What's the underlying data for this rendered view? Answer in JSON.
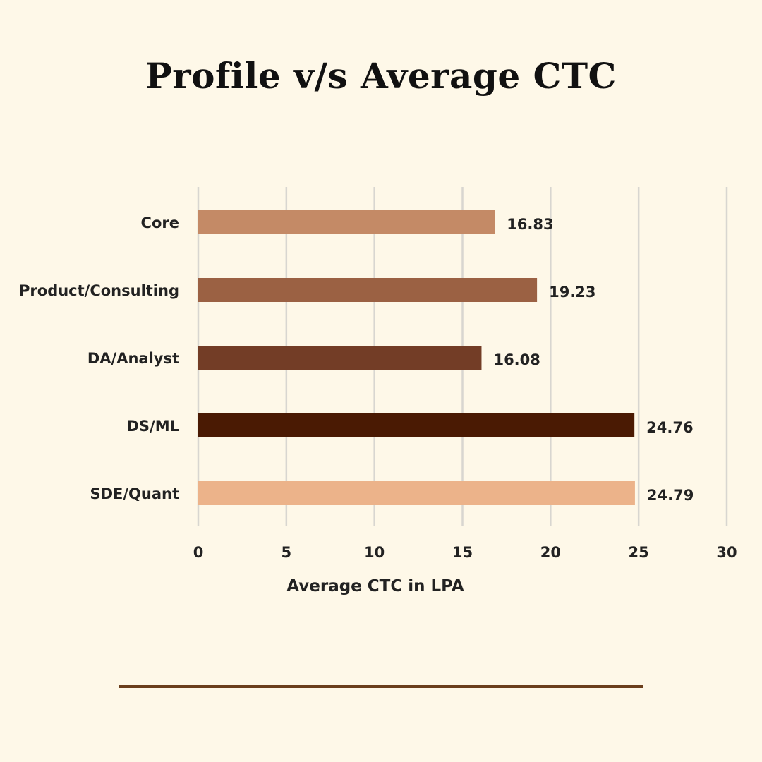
{
  "title": "Profile v/s Average CTC",
  "chart_data": {
    "type": "bar",
    "orientation": "horizontal",
    "title": "Profile v/s Average CTC",
    "xlabel": "Average CTC in LPA",
    "ylabel": "",
    "xlim": [
      0,
      30
    ],
    "x_ticks": [
      0,
      5,
      10,
      15,
      20,
      25,
      30
    ],
    "grid": "vertical",
    "categories": [
      "Core",
      "Product/Consulting",
      "DA/Analyst",
      "DS/ML",
      "SDE/Quant"
    ],
    "values": [
      16.83,
      19.23,
      16.08,
      24.76,
      24.79
    ],
    "value_labels": [
      "16.83",
      "19.23",
      "16.08",
      "24.76",
      "24.79"
    ],
    "colors": [
      "#c48a66",
      "#9b6143",
      "#733d26",
      "#4a1a03",
      "#ecb38a"
    ]
  },
  "colors": {
    "background": "#fef8e8",
    "gridline": "#d8d6d0",
    "divider": "#6b3f1c",
    "text": "#111111"
  }
}
